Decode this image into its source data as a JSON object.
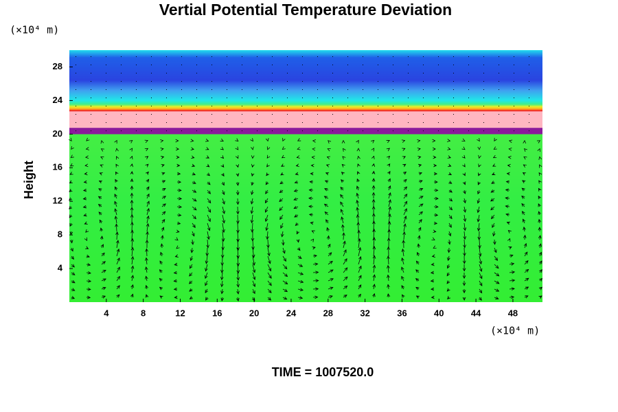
{
  "chart_data": {
    "type": "contour",
    "title": "Vertial Potential Temperature Deviation",
    "y_label": "Height",
    "y_unit": "(×10⁴ m)",
    "x_unit": "(×10⁴ m)",
    "annotation": "TIME = 1007520.0",
    "xlim": [
      0,
      51.2
    ],
    "xticks": [
      4,
      8,
      12,
      16,
      20,
      24,
      28,
      32,
      36,
      40,
      44,
      48
    ],
    "ylim": [
      0,
      30
    ],
    "yticks": [
      4,
      8,
      12,
      16,
      20,
      24,
      28
    ]
  }
}
